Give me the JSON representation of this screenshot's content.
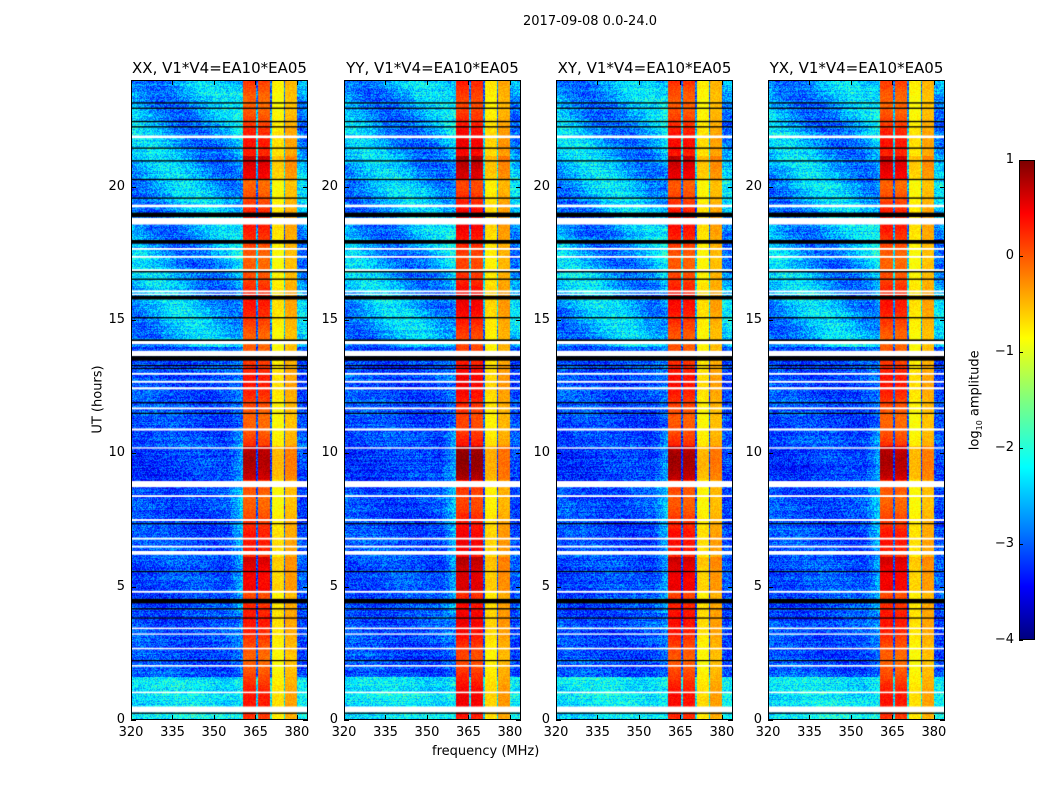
{
  "chart_data": {
    "type": "heatmap",
    "title": "2017-09-08 0.0-24.0",
    "xlabel": "frequency (MHz)",
    "ylabel": "UT (hours)",
    "xlim": [
      320,
      384
    ],
    "ylim": [
      0,
      24
    ],
    "xticks": [
      "320",
      "335",
      "350",
      "365",
      "380"
    ],
    "xtick_values": [
      320,
      335,
      350,
      365,
      380
    ],
    "yticks": [
      "0",
      "5",
      "10",
      "15",
      "20"
    ],
    "ytick_values": [
      0,
      5,
      10,
      15,
      20
    ],
    "panels": [
      {
        "title": "XX, V1*V4=EA10*EA05",
        "band_offset": 0.0
      },
      {
        "title": "YY, V1*V4=EA10*EA05",
        "band_offset": 0.15
      },
      {
        "title": "XY, V1*V4=EA10*EA05",
        "band_offset": 0.05
      },
      {
        "title": "YX, V1*V4=EA10*EA05",
        "band_offset": 0.0
      }
    ],
    "rfi_bands_mhz": [
      {
        "range": [
          360.5,
          365.2
        ],
        "level": 0.1
      },
      {
        "range": [
          366.0,
          370.4
        ],
        "level": 0.05
      },
      {
        "range": [
          371.0,
          375.3
        ],
        "level": -0.8
      },
      {
        "range": [
          375.7,
          380.0
        ],
        "level": -0.5
      }
    ],
    "baseline_log_amplitude": -3.0,
    "flagged_hours_white": [
      [
        21.85,
        21.95
      ],
      [
        19.25,
        19.35
      ],
      [
        18.6,
        18.85
      ],
      [
        17.65,
        17.72
      ],
      [
        17.35,
        17.42
      ],
      [
        16.85,
        16.92
      ],
      [
        16.05,
        16.12
      ],
      [
        15.95,
        16.0
      ],
      [
        14.1,
        14.25
      ],
      [
        13.65,
        13.85
      ],
      [
        12.95,
        13.02
      ],
      [
        12.65,
        12.72
      ],
      [
        12.4,
        12.48
      ],
      [
        11.65,
        11.72
      ],
      [
        10.85,
        10.93
      ],
      [
        10.17,
        10.22
      ],
      [
        8.72,
        8.95
      ],
      [
        8.35,
        8.42
      ],
      [
        7.45,
        7.52
      ],
      [
        6.75,
        6.82
      ],
      [
        6.45,
        6.52
      ],
      [
        6.18,
        6.32
      ],
      [
        4.75,
        4.82
      ],
      [
        3.38,
        3.44
      ],
      [
        3.17,
        3.22
      ],
      [
        2.62,
        2.68
      ],
      [
        1.97,
        2.03
      ],
      [
        0.97,
        1.03
      ],
      [
        0.25,
        0.47
      ]
    ],
    "flagged_hours_black": [
      [
        23.15,
        23.2
      ],
      [
        22.95,
        23.0
      ],
      [
        22.45,
        22.5
      ],
      [
        22.25,
        22.3
      ],
      [
        21.45,
        21.5
      ],
      [
        20.97,
        21.02
      ],
      [
        20.27,
        20.32
      ],
      [
        19.57,
        19.62
      ],
      [
        18.88,
        19.05
      ],
      [
        17.88,
        18.02
      ],
      [
        16.8,
        16.85
      ],
      [
        16.52,
        16.57
      ],
      [
        15.78,
        15.92
      ],
      [
        15.07,
        15.12
      ],
      [
        14.22,
        14.28
      ],
      [
        13.48,
        13.65
      ],
      [
        13.28,
        13.32
      ],
      [
        13.17,
        13.21
      ],
      [
        11.88,
        11.92
      ],
      [
        11.48,
        11.52
      ],
      [
        7.33,
        7.37
      ],
      [
        5.53,
        5.57
      ],
      [
        4.35,
        4.52
      ],
      [
        4.12,
        4.17
      ],
      [
        3.78,
        3.82
      ],
      [
        2.18,
        2.22
      ],
      [
        0.2,
        0.24
      ]
    ],
    "colorbar": {
      "label_main": "log",
      "label_sub": "10",
      "label_rest": " amplitude",
      "ticks": [
        "1",
        "0",
        "−1",
        "−2",
        "−3",
        "−4"
      ],
      "tick_values": [
        1,
        0,
        -1,
        -2,
        -3,
        -4
      ],
      "range": [
        -4,
        1
      ],
      "colormap": "jet"
    }
  }
}
